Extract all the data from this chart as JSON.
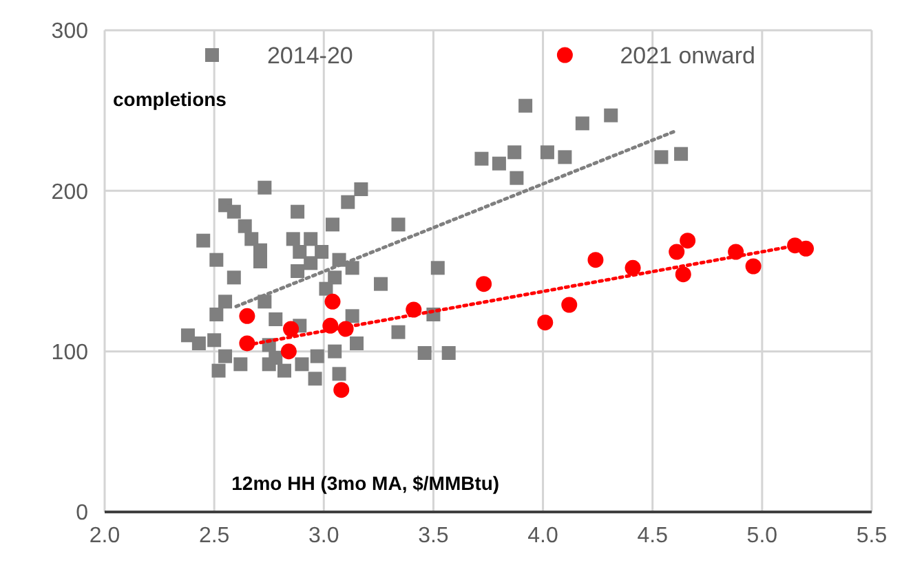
{
  "chart_data": {
    "type": "scatter",
    "xlabel": "12mo HH (3mo MA, $/MMBtu)",
    "annotations": [
      "completions"
    ],
    "xlim": [
      2,
      5.5
    ],
    "xticks": [
      {
        "value": 2,
        "label": "2.0"
      },
      {
        "value": 2.5,
        "label": "2.5"
      },
      {
        "value": 3,
        "label": "3.0"
      },
      {
        "value": 3.5,
        "label": "3.5"
      },
      {
        "value": 4,
        "label": "4.0"
      },
      {
        "value": 4.5,
        "label": "4.5"
      },
      {
        "value": 5,
        "label": "5.0"
      },
      {
        "value": 5.5,
        "label": "5.5"
      }
    ],
    "ylim": [
      0,
      300
    ],
    "yticks": [
      0,
      100,
      200,
      300
    ],
    "grid": true,
    "legend": "top",
    "series": [
      {
        "name": "2014-20",
        "color": "#7f7f7f",
        "marker": "square",
        "x": [
          2.73,
          3.17,
          3.11,
          2.55,
          2.59,
          2.88,
          3.04,
          3.34,
          2.64,
          2.67,
          2.45,
          2.86,
          2.94,
          2.71,
          2.51,
          2.89,
          2.99,
          3.07,
          2.71,
          3.13,
          3.52,
          2.88,
          2.94,
          3.05,
          2.59,
          3.26,
          3.01,
          2.55,
          2.73,
          2.51,
          3.5,
          2.78,
          3.13,
          2.89,
          3.34,
          2.38,
          2.43,
          2.5,
          3.15,
          2.75,
          3.46,
          3.57,
          2.55,
          2.62,
          2.52,
          2.75,
          2.82,
          2.9,
          2.97,
          3.05,
          2.96,
          3.07,
          2.78,
          3.92,
          4.18,
          4.31,
          3.72,
          3.8,
          3.87,
          3.88,
          4.02,
          4.1,
          4.54,
          4.63
        ],
        "values": [
          202,
          201,
          193,
          191,
          187,
          187,
          179,
          179,
          178,
          170,
          169,
          170,
          170,
          163,
          157,
          162,
          162,
          157,
          156,
          152,
          152,
          150,
          155,
          146,
          146,
          142,
          139,
          131,
          131,
          123,
          123,
          120,
          122,
          116,
          112,
          110,
          105,
          107,
          105,
          104,
          99,
          99,
          97,
          92,
          88,
          92,
          88,
          92,
          97,
          100,
          83,
          86,
          96,
          253,
          242,
          247,
          220,
          217,
          224,
          208,
          224,
          221,
          221,
          223
        ]
      },
      {
        "name": "2021 onward",
        "color": "#ff0000",
        "marker": "circle",
        "x": [
          2.65,
          2.65,
          2.85,
          2.84,
          3.04,
          3.03,
          3.1,
          3.08,
          3.41,
          3.73,
          4.01,
          4.12,
          4.24,
          4.41,
          4.61,
          4.66,
          4.64,
          4.88,
          4.96,
          5.15,
          5.2
        ],
        "values": [
          122,
          105,
          114,
          100,
          131,
          116,
          114,
          76,
          126,
          142,
          118,
          129,
          157,
          152,
          162,
          169,
          148,
          162,
          153,
          166,
          164
        ]
      },
      {
        "type": "line",
        "color": "#7f7f7f",
        "marker": "none",
        "line_style": "dotted",
        "x": [
          2.6,
          4.6
        ],
        "values": [
          128,
          237
        ]
      },
      {
        "type": "line",
        "color": "#ff0000",
        "marker": "none",
        "line_style": "dotted",
        "x": [
          2.65,
          5.2
        ],
        "values": [
          104,
          167
        ]
      }
    ]
  }
}
